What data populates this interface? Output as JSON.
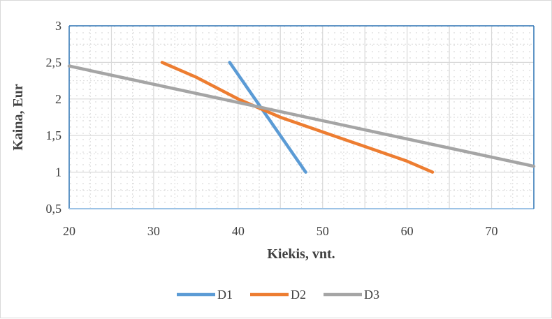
{
  "chart_data": {
    "type": "line",
    "title": "",
    "xlabel": "Kiekis, vnt.",
    "ylabel": "Kaina, Eur",
    "xlim": [
      20,
      75
    ],
    "ylim": [
      0.5,
      3
    ],
    "x_ticks": [
      20,
      30,
      40,
      50,
      60,
      70
    ],
    "x_tick_labels": [
      "20",
      "30",
      "40",
      "50",
      "60",
      "70"
    ],
    "y_ticks": [
      0.5,
      1,
      1.5,
      2,
      2.5,
      3
    ],
    "y_tick_labels": [
      "0,5",
      "1",
      "1,5",
      "2",
      "2,5",
      "3"
    ],
    "grid": true,
    "legend_position": "bottom",
    "series": [
      {
        "name": "D1",
        "color": "#5b9bd5",
        "points": [
          [
            39,
            2.5
          ],
          [
            48,
            1.0
          ]
        ]
      },
      {
        "name": "D2",
        "color": "#ed7d31",
        "points": [
          [
            31,
            2.5
          ],
          [
            35,
            2.3
          ],
          [
            40,
            2.0
          ],
          [
            45,
            1.75
          ],
          [
            50,
            1.55
          ],
          [
            55,
            1.35
          ],
          [
            60,
            1.15
          ],
          [
            63,
            1.0
          ]
        ]
      },
      {
        "name": "D3",
        "color": "#a5a5a5",
        "points": [
          [
            20,
            2.45
          ],
          [
            75,
            1.08
          ]
        ]
      }
    ]
  }
}
